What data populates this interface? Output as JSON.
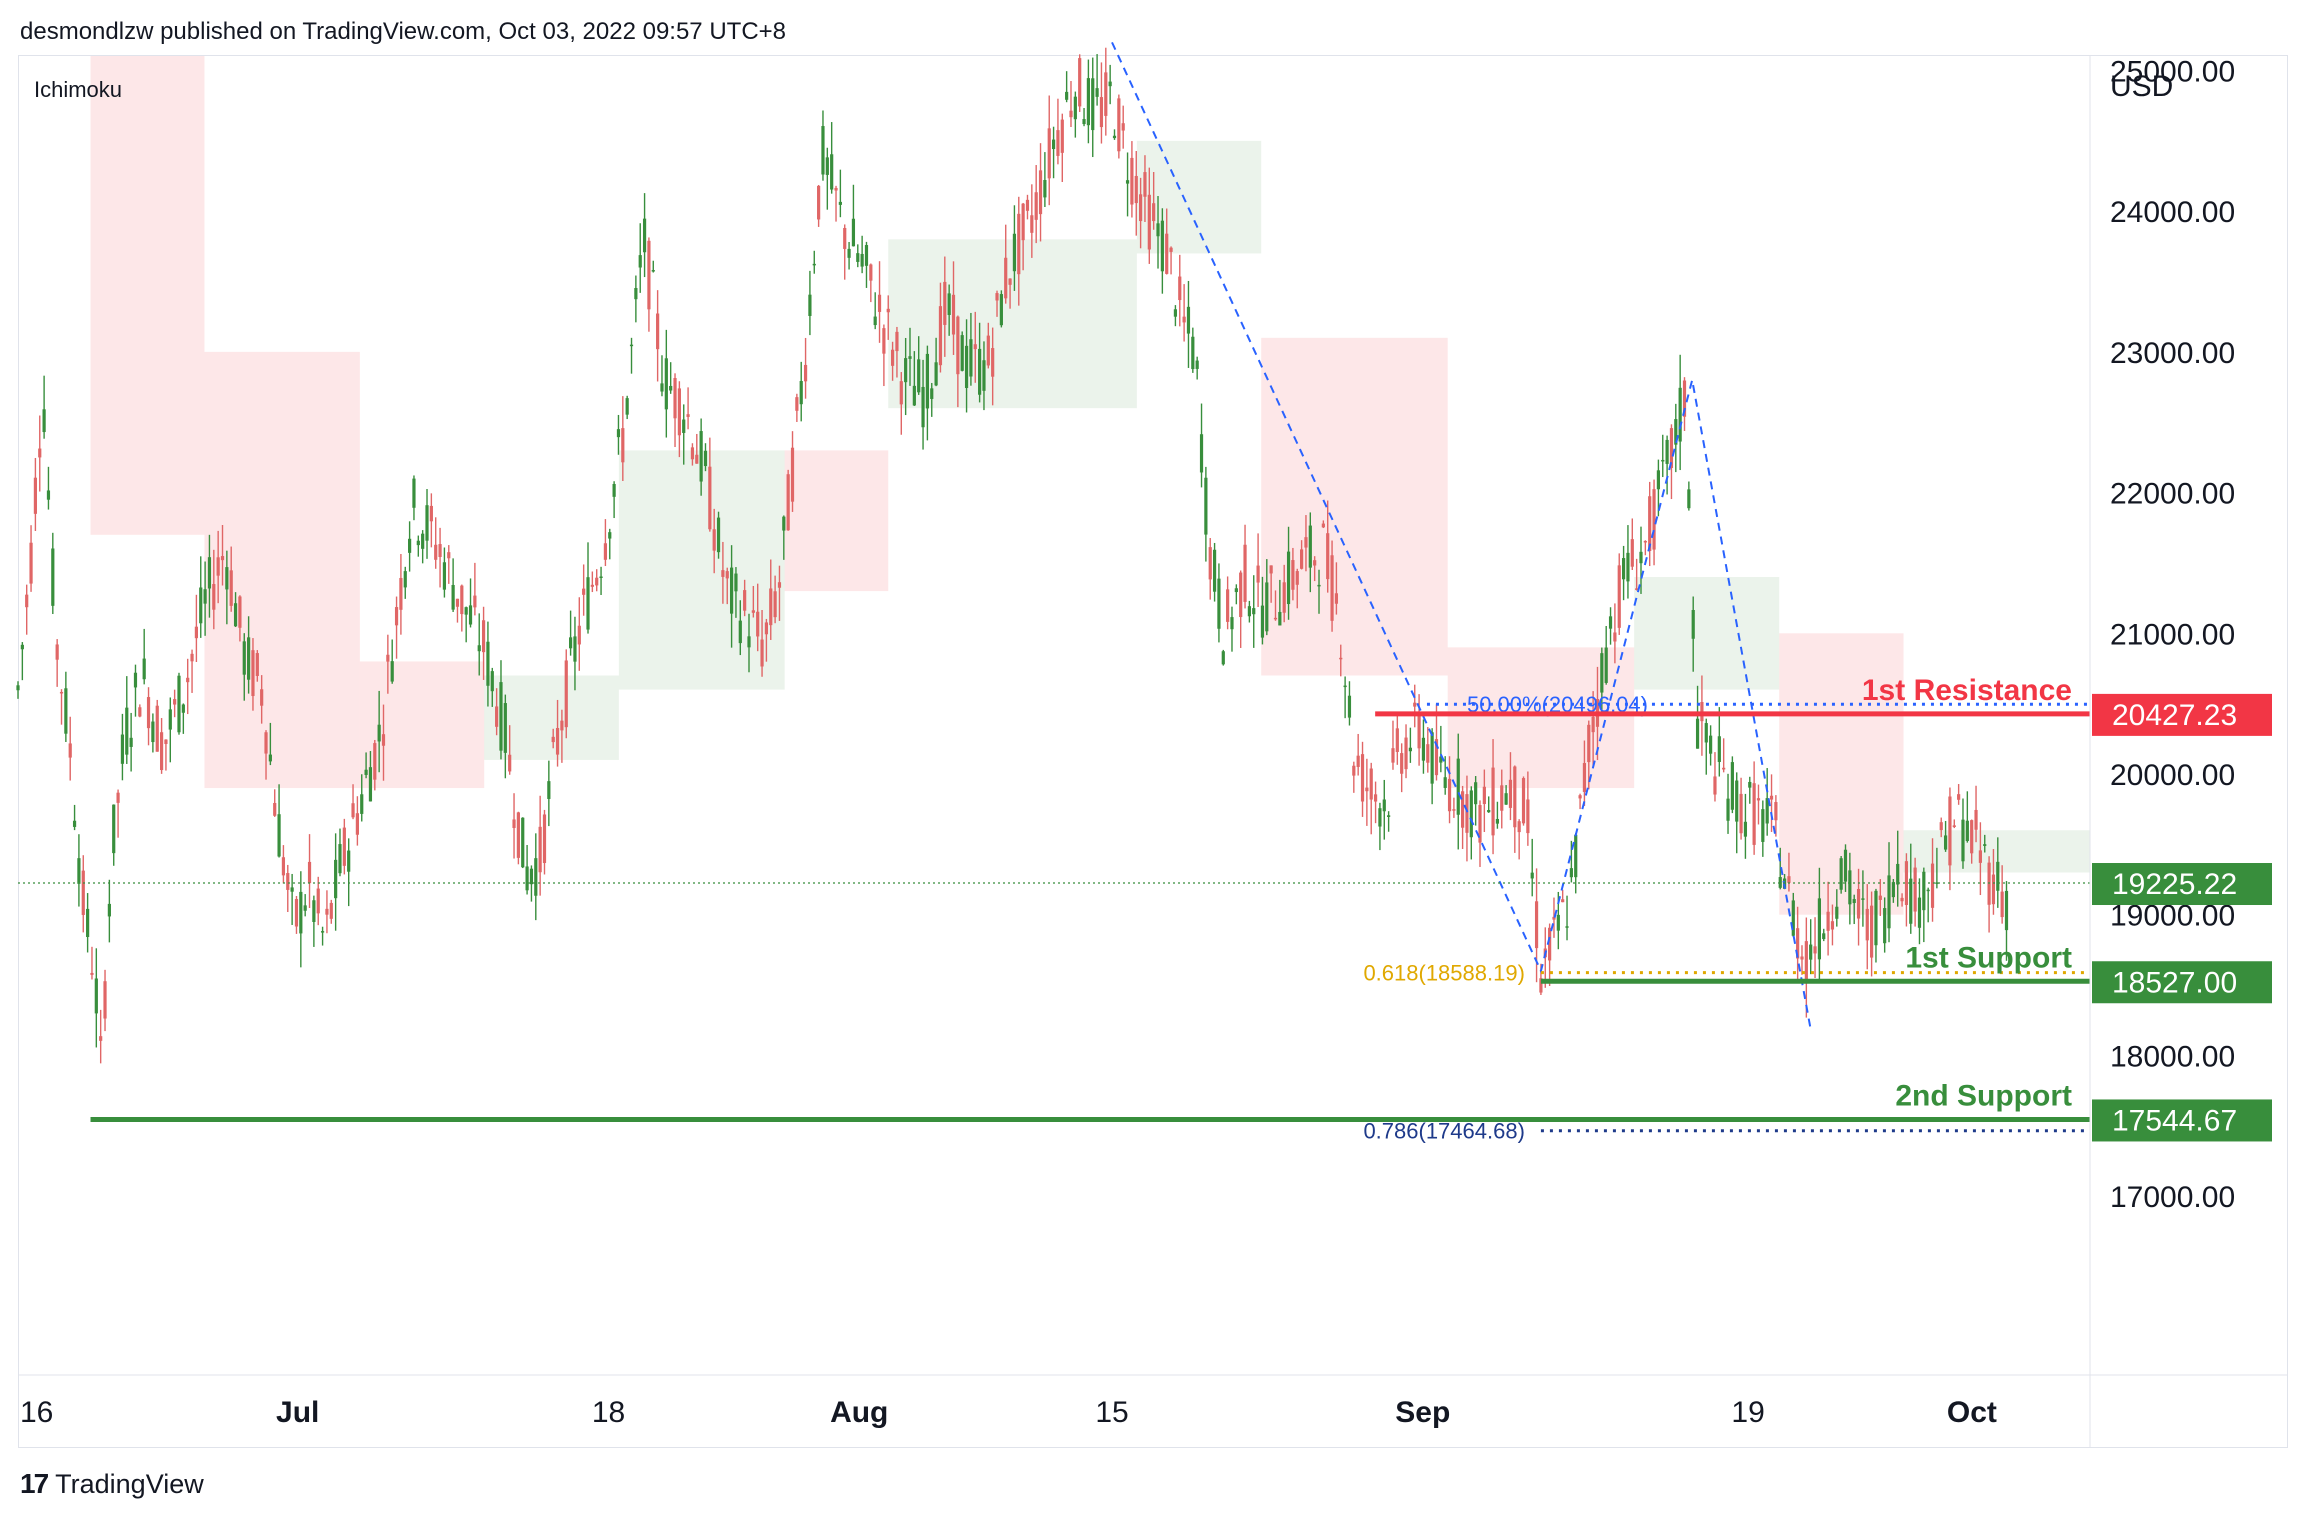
{
  "header": {
    "published": "desmondlzw published on TradingView.com, Oct 03, 2022 09:57 UTC+8"
  },
  "indicator": {
    "name": "Ichimoku"
  },
  "footer": {
    "brand": "TradingView",
    "logo_icon": "tradingview-logo-icon"
  },
  "chart_data": {
    "type": "candlestick",
    "symbol_currency": "USD",
    "y_range": [
      16600,
      26200
    ],
    "y_ticks": [
      {
        "value": 25000,
        "label": "25000.00"
      },
      {
        "value": 24000,
        "label": "24000.00"
      },
      {
        "value": 23000,
        "label": "23000.00"
      },
      {
        "value": 22000,
        "label": "22000.00"
      },
      {
        "value": 21000,
        "label": "21000.00"
      },
      {
        "value": 20000,
        "label": "20000.00"
      },
      {
        "value": 19000,
        "label": "19000.00"
      },
      {
        "value": 18000,
        "label": "18000.00"
      },
      {
        "value": 17000,
        "label": "17000.00"
      }
    ],
    "x_range": [
      0,
      1000
    ],
    "x_ticks": [
      {
        "t": 0,
        "label": "16",
        "bold": false
      },
      {
        "t": 135,
        "label": "Jul",
        "bold": true
      },
      {
        "t": 285,
        "label": "18",
        "bold": false
      },
      {
        "t": 406,
        "label": "Aug",
        "bold": true
      },
      {
        "t": 528,
        "label": "15",
        "bold": false
      },
      {
        "t": 678,
        "label": "Sep",
        "bold": true
      },
      {
        "t": 835,
        "label": "19",
        "bold": false
      },
      {
        "t": 943,
        "label": "Oct",
        "bold": true
      }
    ],
    "price_path": [
      [
        0,
        20600
      ],
      [
        6,
        21500
      ],
      [
        12,
        22800
      ],
      [
        18,
        21000
      ],
      [
        25,
        20200
      ],
      [
        32,
        19000
      ],
      [
        37,
        18600
      ],
      [
        40,
        17900
      ],
      [
        45,
        19400
      ],
      [
        52,
        20300
      ],
      [
        60,
        20700
      ],
      [
        70,
        20200
      ],
      [
        80,
        20600
      ],
      [
        90,
        21200
      ],
      [
        100,
        21600
      ],
      [
        110,
        20800
      ],
      [
        118,
        20600
      ],
      [
        125,
        19700
      ],
      [
        133,
        18900
      ],
      [
        140,
        19200
      ],
      [
        148,
        18800
      ],
      [
        155,
        19300
      ],
      [
        165,
        19800
      ],
      [
        175,
        20300
      ],
      [
        190,
        21900
      ],
      [
        200,
        21700
      ],
      [
        215,
        21200
      ],
      [
        225,
        20900
      ],
      [
        235,
        20300
      ],
      [
        245,
        19300
      ],
      [
        252,
        19400
      ],
      [
        262,
        20400
      ],
      [
        272,
        21100
      ],
      [
        282,
        21600
      ],
      [
        292,
        22400
      ],
      [
        302,
        23800
      ],
      [
        312,
        22800
      ],
      [
        322,
        22600
      ],
      [
        332,
        22100
      ],
      [
        342,
        21300
      ],
      [
        352,
        21100
      ],
      [
        360,
        20900
      ],
      [
        368,
        21400
      ],
      [
        380,
        23000
      ],
      [
        388,
        24400
      ],
      [
        398,
        23900
      ],
      [
        408,
        23600
      ],
      [
        418,
        23200
      ],
      [
        428,
        22800
      ],
      [
        438,
        22700
      ],
      [
        448,
        23300
      ],
      [
        458,
        22900
      ],
      [
        468,
        22900
      ],
      [
        478,
        23600
      ],
      [
        488,
        23900
      ],
      [
        500,
        24500
      ],
      [
        510,
        24900
      ],
      [
        520,
        24700
      ],
      [
        528,
        24800
      ],
      [
        535,
        24400
      ],
      [
        545,
        24000
      ],
      [
        555,
        23700
      ],
      [
        562,
        23200
      ],
      [
        568,
        23000
      ],
      [
        575,
        21600
      ],
      [
        582,
        21000
      ],
      [
        592,
        21400
      ],
      [
        600,
        21200
      ],
      [
        610,
        21300
      ],
      [
        620,
        21500
      ],
      [
        630,
        21600
      ],
      [
        638,
        21100
      ],
      [
        645,
        20100
      ],
      [
        652,
        19900
      ],
      [
        660,
        19800
      ],
      [
        668,
        20200
      ],
      [
        678,
        20300
      ],
      [
        685,
        20000
      ],
      [
        695,
        19900
      ],
      [
        705,
        19700
      ],
      [
        712,
        19800
      ],
      [
        720,
        19900
      ],
      [
        728,
        19700
      ],
      [
        735,
        18600
      ],
      [
        742,
        18800
      ],
      [
        750,
        19200
      ],
      [
        758,
        20200
      ],
      [
        768,
        21000
      ],
      [
        775,
        21400
      ],
      [
        785,
        21600
      ],
      [
        795,
        22100
      ],
      [
        805,
        22700
      ],
      [
        810,
        20400
      ],
      [
        818,
        20100
      ],
      [
        830,
        19800
      ],
      [
        840,
        19700
      ],
      [
        848,
        19600
      ],
      [
        855,
        19100
      ],
      [
        862,
        18700
      ],
      [
        870,
        18900
      ],
      [
        880,
        19300
      ],
      [
        892,
        18900
      ],
      [
        900,
        19000
      ],
      [
        908,
        19400
      ],
      [
        915,
        19100
      ],
      [
        925,
        19300
      ],
      [
        935,
        19700
      ],
      [
        945,
        19500
      ],
      [
        952,
        19300
      ],
      [
        960,
        19100
      ]
    ],
    "horizontal_levels": [
      {
        "name": "1st Resistance",
        "value": 20427.23,
        "label": "20427.23",
        "color": "#f23645",
        "t_start": 655
      },
      {
        "name": "1st Support",
        "value": 18527.0,
        "label": "18527.00",
        "color": "#388e3c",
        "t_start": 735
      },
      {
        "name": "2nd Support",
        "value": 17544.67,
        "label": "17544.67",
        "color": "#388e3c",
        "t_start": 35
      }
    ],
    "current_price": {
      "value": 19225.22,
      "label": "19225.22",
      "color": "#388e3c"
    },
    "fib_levels": [
      {
        "label": "50.00%(20496.04)",
        "value": 20496.04,
        "color": "#2962ff",
        "t_start": 680
      },
      {
        "label": "0.618(18588.19)",
        "value": 18588.19,
        "color": "#e0a800",
        "t_start": 735
      },
      {
        "label": "0.786(17464.68)",
        "value": 17464.68,
        "color": "#1e3a8a",
        "t_start": 735
      }
    ],
    "zigzag_1": [
      [
        528,
        25200
      ],
      [
        735,
        18600
      ],
      [
        808,
        22800
      ],
      [
        865,
        18200
      ]
    ],
    "cloud_bands": [
      {
        "t1": 35,
        "t2": 90,
        "lo": 21700,
        "hi": 26200,
        "color": "red"
      },
      {
        "t1": 90,
        "t2": 165,
        "lo": 19900,
        "hi": 23000,
        "color": "red"
      },
      {
        "t1": 165,
        "t2": 225,
        "lo": 19900,
        "hi": 20800,
        "color": "red"
      },
      {
        "t1": 225,
        "t2": 290,
        "lo": 20100,
        "hi": 20700,
        "color": "green"
      },
      {
        "t1": 290,
        "t2": 370,
        "lo": 20600,
        "hi": 22300,
        "color": "green"
      },
      {
        "t1": 370,
        "t2": 420,
        "lo": 21300,
        "hi": 22300,
        "color": "red"
      },
      {
        "t1": 420,
        "t2": 540,
        "lo": 22600,
        "hi": 23800,
        "color": "green"
      },
      {
        "t1": 540,
        "t2": 600,
        "lo": 23700,
        "hi": 24500,
        "color": "green"
      },
      {
        "t1": 600,
        "t2": 690,
        "lo": 20700,
        "hi": 23100,
        "color": "red"
      },
      {
        "t1": 690,
        "t2": 780,
        "lo": 19900,
        "hi": 20900,
        "color": "red"
      },
      {
        "t1": 780,
        "t2": 850,
        "lo": 20600,
        "hi": 21400,
        "color": "green"
      },
      {
        "t1": 850,
        "t2": 910,
        "lo": 19000,
        "hi": 21000,
        "color": "red"
      },
      {
        "t1": 910,
        "t2": 1000,
        "lo": 19300,
        "hi": 19600,
        "color": "green"
      }
    ],
    "colors": {
      "up": "#26a69a",
      "down": "#ef5350",
      "up_candle": "#388e3c",
      "down_candle": "#e06666"
    }
  }
}
